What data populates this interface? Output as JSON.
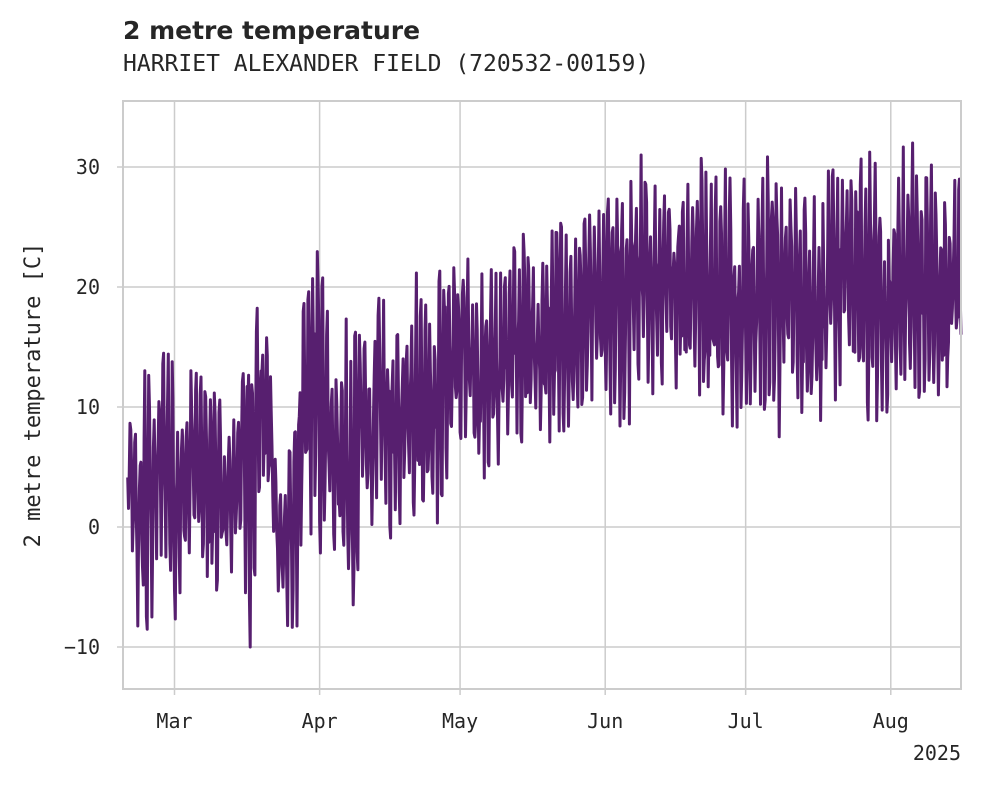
{
  "chart_data": {
    "type": "line",
    "title": "2 metre temperature",
    "subtitle": "HARRIET ALEXANDER FIELD (720532-00159)",
    "xlabel": "",
    "ylabel": "2 metre temperature [C]",
    "x_start": "2025-02-19",
    "x_end": "2025-08-16",
    "xlim": [
      "2025-02-18",
      "2025-08-16"
    ],
    "ylim": [
      -13.5,
      35.5
    ],
    "x_ticks": [
      {
        "date": "2025-03-01",
        "label": "Mar"
      },
      {
        "date": "2025-04-01",
        "label": "Apr"
      },
      {
        "date": "2025-05-01",
        "label": "May"
      },
      {
        "date": "2025-06-01",
        "label": "Jun"
      },
      {
        "date": "2025-07-01",
        "label": "Jul"
      },
      {
        "date": "2025-08-01",
        "label": "Aug"
      }
    ],
    "x_year_label": "2025",
    "y_ticks": [
      -10,
      0,
      10,
      20,
      30
    ],
    "grid": true,
    "line_color": "#571f6f",
    "series": [
      {
        "name": "",
        "x": [
          "2025-02-19",
          "2025-02-21",
          "2025-02-23",
          "2025-02-25",
          "2025-02-27",
          "2025-03-01",
          "2025-03-03",
          "2025-03-05",
          "2025-03-07",
          "2025-03-09",
          "2025-03-11",
          "2025-03-13",
          "2025-03-15",
          "2025-03-17",
          "2025-03-19",
          "2025-03-21",
          "2025-03-23",
          "2025-03-25",
          "2025-03-27",
          "2025-03-29",
          "2025-03-31",
          "2025-04-02",
          "2025-04-04",
          "2025-04-06",
          "2025-04-08",
          "2025-04-10",
          "2025-04-12",
          "2025-04-14",
          "2025-04-16",
          "2025-04-18",
          "2025-04-20",
          "2025-04-22",
          "2025-04-24",
          "2025-04-26",
          "2025-04-28",
          "2025-04-30",
          "2025-05-02",
          "2025-05-04",
          "2025-05-06",
          "2025-05-08",
          "2025-05-10",
          "2025-05-12",
          "2025-05-14",
          "2025-05-16",
          "2025-05-18",
          "2025-05-20",
          "2025-05-22",
          "2025-05-24",
          "2025-05-26",
          "2025-05-28",
          "2025-05-30",
          "2025-06-01",
          "2025-06-03",
          "2025-06-05",
          "2025-06-07",
          "2025-06-09",
          "2025-06-11",
          "2025-06-13",
          "2025-06-15",
          "2025-06-17",
          "2025-06-19",
          "2025-06-21",
          "2025-06-23",
          "2025-06-25",
          "2025-06-27",
          "2025-06-29",
          "2025-07-01",
          "2025-07-03",
          "2025-07-05",
          "2025-07-07",
          "2025-07-09",
          "2025-07-11",
          "2025-07-13",
          "2025-07-15",
          "2025-07-17",
          "2025-07-19",
          "2025-07-21",
          "2025-07-23",
          "2025-07-25",
          "2025-07-27",
          "2025-07-29",
          "2025-07-31",
          "2025-08-02",
          "2025-08-04",
          "2025-08-06",
          "2025-08-08",
          "2025-08-10",
          "2025-08-12",
          "2025-08-14",
          "2025-08-16"
        ],
        "max": [
          9,
          8,
          15,
          12,
          16,
          14,
          9,
          15,
          12,
          14,
          10,
          8,
          13,
          20,
          19,
          17,
          4,
          5,
          13,
          20,
          25,
          20,
          17,
          18,
          16,
          17,
          19,
          20,
          17,
          16,
          22,
          21,
          18,
          21,
          22,
          24,
          24,
          19,
          22,
          22,
          21,
          25,
          25,
          24,
          21,
          24,
          26,
          24,
          24,
          26,
          26,
          27,
          28,
          29,
          31,
          31,
          31,
          27,
          29,
          30,
          32,
          32,
          30,
          29,
          30,
          29,
          29,
          31,
          32,
          33,
          32,
          31,
          29,
          28,
          28,
          30,
          31,
          31,
          30,
          32,
          31,
          27,
          30,
          32,
          32,
          31,
          30,
          27,
          30,
          30
        ],
        "min": [
          2,
          -8,
          -11,
          -5,
          -2,
          -8,
          -4,
          -2,
          -4,
          -6,
          -5,
          -4,
          -1,
          -11,
          1,
          2,
          -5,
          -9,
          -9,
          0,
          -1,
          -3,
          -3,
          -6,
          -10,
          1,
          -3,
          0,
          -1,
          0,
          1,
          1,
          3,
          0,
          4,
          5,
          5,
          6,
          4,
          3,
          6,
          9,
          7,
          8,
          8,
          7,
          8,
          8,
          10,
          10,
          11,
          10,
          9,
          8,
          9,
          11,
          10,
          12,
          11,
          12,
          10,
          11,
          11,
          10,
          9,
          8,
          10,
          8,
          8,
          8,
          7,
          8,
          9,
          10,
          8,
          10,
          11,
          12,
          10,
          9,
          8,
          7,
          8,
          10,
          9,
          10,
          10,
          11,
          12,
          12
        ]
      }
    ]
  }
}
